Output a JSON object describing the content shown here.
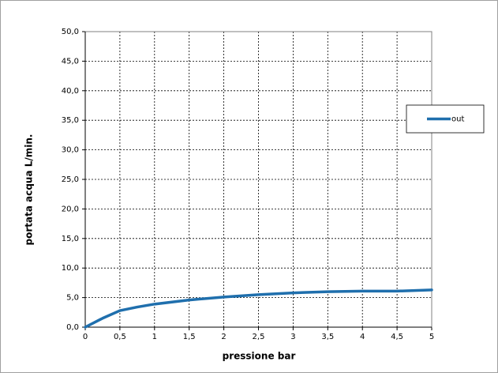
{
  "chart_data": {
    "type": "line",
    "x_label": "pressione bar",
    "y_label": "portata acqua  L/min.",
    "x": [
      0,
      0.25,
      0.5,
      0.75,
      1,
      1.5,
      2,
      2.5,
      3,
      3.5,
      4,
      4.5,
      5
    ],
    "series": [
      {
        "name": "out",
        "color": "#1f6fad",
        "values": [
          0,
          1.5,
          2.8,
          3.4,
          3.9,
          4.6,
          5.1,
          5.5,
          5.8,
          6.0,
          6.1,
          6.1,
          6.3
        ]
      }
    ],
    "xlim": [
      0,
      5
    ],
    "xticks": [
      0,
      {
        "value": 0.5,
        "label": "0,5"
      },
      1,
      {
        "value": 1.5,
        "label": "1,5"
      },
      2,
      {
        "value": 2.5,
        "label": "2,5"
      },
      3,
      {
        "value": 3.5,
        "label": "3,5"
      },
      4,
      {
        "value": 4.5,
        "label": "4,5"
      },
      5
    ],
    "ylim": [
      0,
      50
    ],
    "yticks": [
      {
        "value": 0,
        "label": "0,0"
      },
      {
        "value": 5,
        "label": "5,0"
      },
      {
        "value": 10,
        "label": "10,0"
      },
      {
        "value": 15,
        "label": "15,0"
      },
      {
        "value": 20,
        "label": "20,0"
      },
      {
        "value": 25,
        "label": "25,0"
      },
      {
        "value": 30,
        "label": "30,0"
      },
      {
        "value": 35,
        "label": "35,0"
      },
      {
        "value": 40,
        "label": "40,0"
      },
      {
        "value": 45,
        "label": "45,0"
      },
      {
        "value": 50,
        "label": "50,0"
      }
    ],
    "grid": true,
    "legend": "right"
  }
}
